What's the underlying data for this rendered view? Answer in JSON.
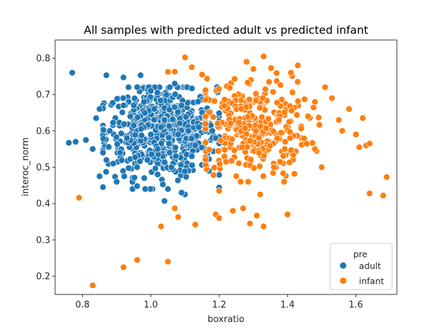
{
  "chart_data": {
    "type": "scatter",
    "title": "All samples with predicted adult vs predicted infant",
    "xlabel": "boxratio",
    "ylabel": "interoc_norm",
    "xlim": [
      0.72,
      1.72
    ],
    "ylim": [
      0.15,
      0.85
    ],
    "x_ticks": [
      0.8,
      1.0,
      1.2,
      1.4,
      1.6
    ],
    "y_ticks": [
      0.2,
      0.3,
      0.4,
      0.5,
      0.6,
      0.7,
      0.8
    ],
    "x_tick_labels": [
      "0.8",
      "1.0",
      "1.2",
      "1.4",
      "1.6"
    ],
    "y_tick_labels": [
      "0.2",
      "0.3",
      "0.4",
      "0.5",
      "0.6",
      "0.7",
      "0.8"
    ],
    "grid": false,
    "legend": {
      "title": "pre",
      "position": "lower-right"
    },
    "series": [
      {
        "name": "adult",
        "color": "#1f77b4",
        "points": [
          [
            0.77,
            0.76
          ],
          [
            0.76,
            0.567
          ],
          [
            0.78,
            0.57
          ],
          [
            0.81,
            0.575
          ],
          [
            0.83,
            0.55
          ],
          [
            0.84,
            0.635
          ],
          [
            0.85,
            0.66
          ],
          [
            0.85,
            0.475
          ],
          [
            0.87,
            0.753
          ],
          [
            0.87,
            0.52
          ],
          [
            0.88,
            0.6
          ],
          [
            0.89,
            0.51
          ],
          [
            0.9,
            0.46
          ],
          [
            0.92,
            0.747
          ],
          [
            0.95,
            0.615
          ],
          [
            0.96,
            0.448
          ],
          [
            0.97,
            0.753
          ],
          [
            0.98,
            0.68
          ],
          [
            1.0,
            0.71
          ],
          [
            1.02,
            0.55
          ],
          [
            1.03,
            0.61
          ],
          [
            1.04,
            0.407
          ],
          [
            1.05,
            0.44
          ],
          [
            1.07,
            0.73
          ],
          [
            1.08,
            0.59
          ],
          [
            1.1,
            0.425
          ],
          [
            1.09,
            0.43
          ],
          [
            1.12,
            0.53
          ],
          [
            1.15,
            0.65
          ],
          [
            1.17,
            0.49
          ],
          [
            0.93,
            0.58
          ],
          [
            0.94,
            0.64
          ],
          [
            0.99,
            0.52
          ],
          [
            1.01,
            0.66
          ],
          [
            1.06,
            0.5
          ],
          [
            1.11,
            0.6
          ],
          [
            1.13,
            0.56
          ],
          [
            1.16,
            0.57
          ],
          [
            1.18,
            0.6
          ],
          [
            0.91,
            0.54
          ],
          [
            0.95,
            0.67
          ],
          [
            1.0,
            0.59
          ],
          [
            1.04,
            0.63
          ],
          [
            1.09,
            0.67
          ],
          [
            1.14,
            0.61
          ],
          [
            1.19,
            0.58
          ],
          [
            0.96,
            0.5
          ],
          [
            1.02,
            0.48
          ]
        ],
        "cluster": {
          "x_range": [
            0.86,
            1.2
          ],
          "y_range": [
            0.44,
            0.72
          ],
          "center": [
            1.03,
            0.6
          ],
          "count": 600
        }
      },
      {
        "name": "infant",
        "color": "#ff7f0e",
        "points": [
          [
            0.79,
            0.416
          ],
          [
            0.83,
            0.175
          ],
          [
            0.92,
            0.225
          ],
          [
            0.96,
            0.245
          ],
          [
            1.05,
            0.24
          ],
          [
            1.03,
            0.337
          ],
          [
            1.07,
            0.387
          ],
          [
            1.08,
            0.363
          ],
          [
            1.13,
            0.342
          ],
          [
            1.1,
            0.802
          ],
          [
            1.05,
            0.762
          ],
          [
            1.07,
            0.763
          ],
          [
            1.12,
            0.775
          ],
          [
            1.15,
            0.755
          ],
          [
            1.19,
            0.37
          ],
          [
            1.2,
            0.36
          ],
          [
            1.2,
            0.435
          ],
          [
            1.24,
            0.38
          ],
          [
            1.27,
            0.387
          ],
          [
            1.29,
            0.345
          ],
          [
            1.32,
            0.425
          ],
          [
            1.33,
            0.337
          ],
          [
            1.33,
            0.805
          ],
          [
            1.31,
            0.367
          ],
          [
            1.36,
            0.5
          ],
          [
            1.39,
            0.46
          ],
          [
            1.4,
            0.37
          ],
          [
            1.41,
            0.76
          ],
          [
            1.43,
            0.78
          ],
          [
            1.46,
            0.64
          ],
          [
            1.48,
            0.55
          ],
          [
            1.5,
            0.5
          ],
          [
            1.51,
            0.72
          ],
          [
            1.53,
            0.69
          ],
          [
            1.55,
            0.63
          ],
          [
            1.56,
            0.6
          ],
          [
            1.58,
            0.66
          ],
          [
            1.6,
            0.59
          ],
          [
            1.61,
            0.555
          ],
          [
            1.62,
            0.635
          ],
          [
            1.63,
            0.56
          ],
          [
            1.64,
            0.565
          ],
          [
            1.64,
            0.428
          ],
          [
            1.68,
            0.422
          ],
          [
            1.69,
            0.473
          ],
          [
            1.25,
            0.475
          ],
          [
            1.22,
            0.515
          ],
          [
            1.28,
            0.79
          ],
          [
            1.3,
            0.77
          ],
          [
            1.37,
            0.58
          ]
        ],
        "cluster": {
          "x_range": [
            1.16,
            1.5
          ],
          "y_range": [
            0.46,
            0.78
          ],
          "center": [
            1.3,
            0.61
          ],
          "count": 320
        }
      }
    ]
  }
}
